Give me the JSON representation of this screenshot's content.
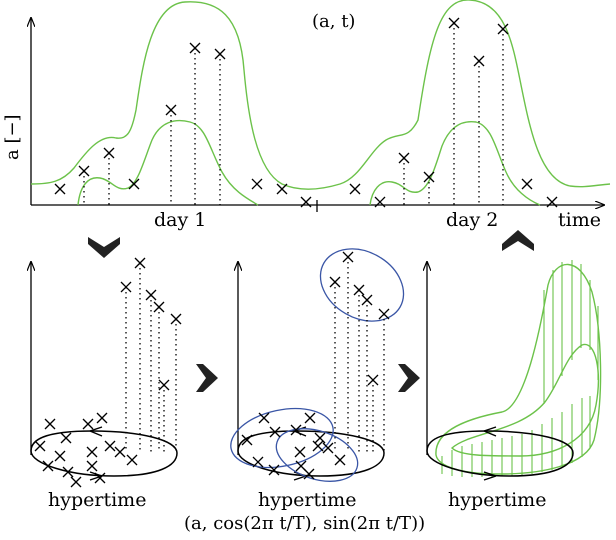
{
  "top_plot": {
    "title": "(a, t)",
    "ylabel": "a [−]",
    "xlabel": "time",
    "day_labels": [
      "day 1",
      "day 2"
    ]
  },
  "bottom_panels": {
    "labels": [
      "hypertime",
      "hypertime",
      "hypertime"
    ],
    "transform_formula": "(a, cos(2π t/T), sin(2π t/T))"
  },
  "colors": {
    "model_curve": "#6cc24a",
    "cluster_ellipse": "#3a56a6",
    "axes": "#000000"
  },
  "icons": [
    "arrow-down-icon",
    "arrow-right-icon",
    "arrow-right-icon",
    "arrow-up-icon"
  ]
}
